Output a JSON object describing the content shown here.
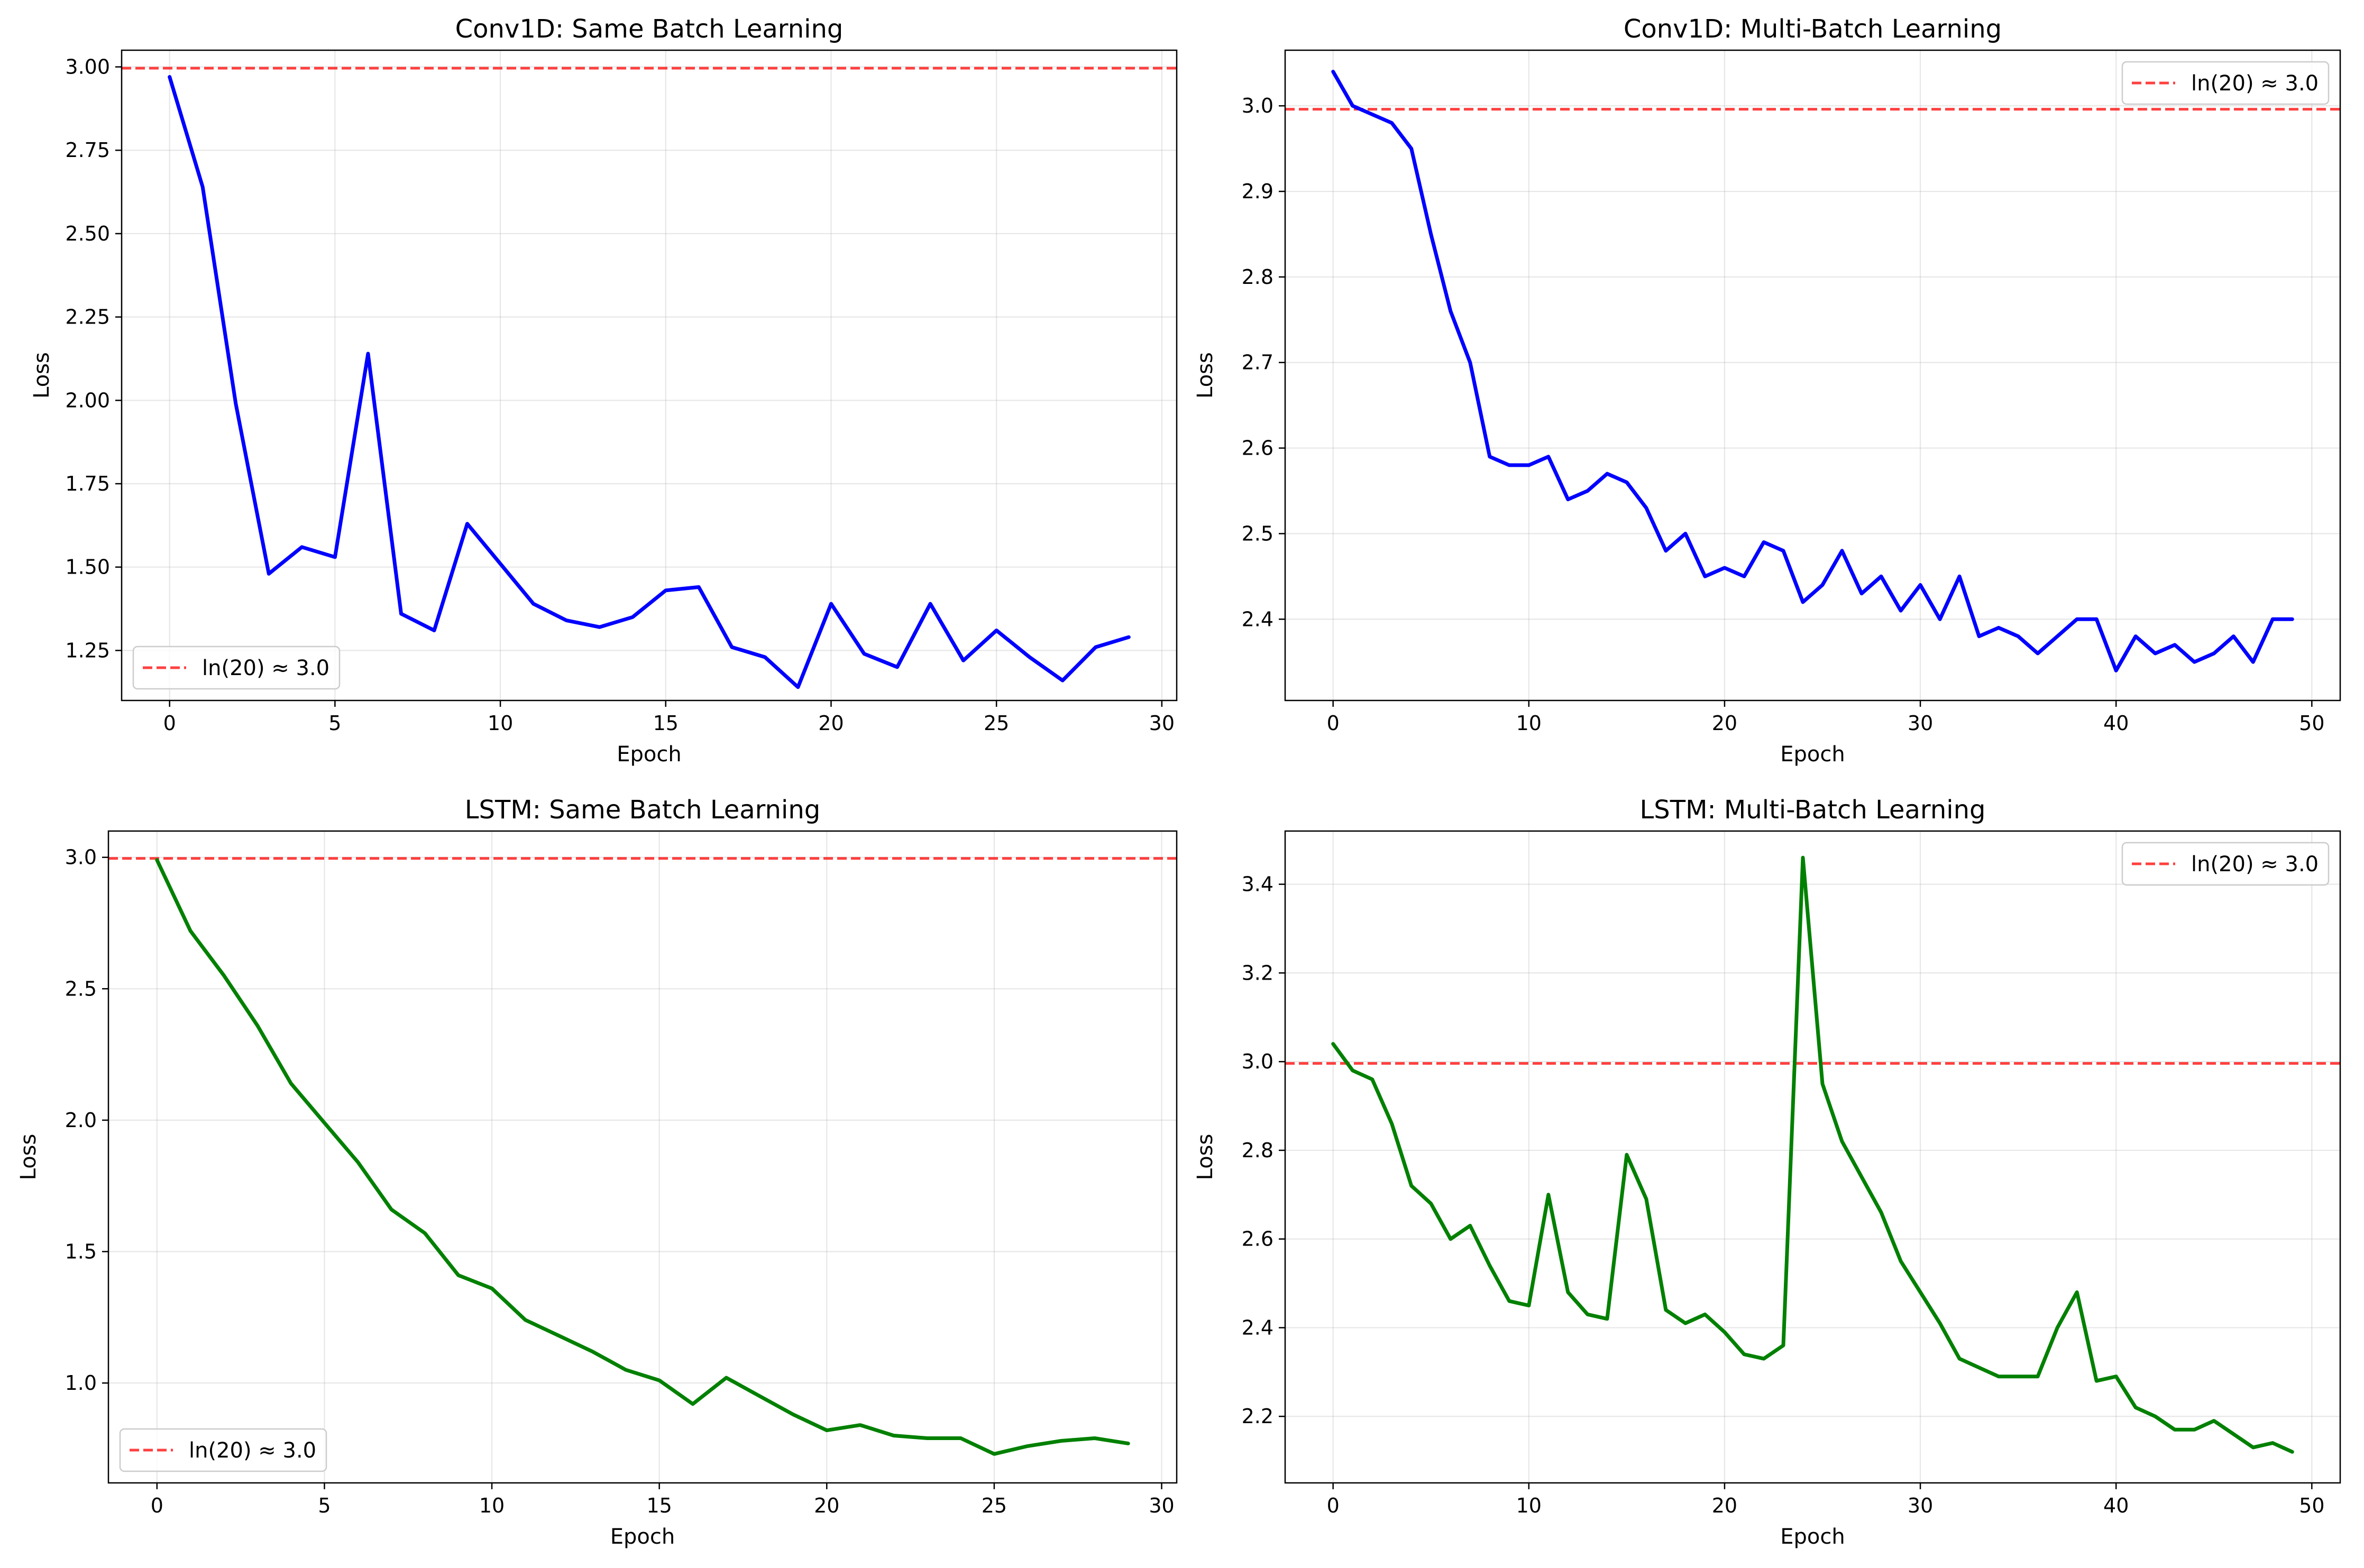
{
  "colors": {
    "threshold": "#ff0000",
    "conv1d": "#0000ff",
    "lstm": "#008000",
    "grid": "#b0b0b0"
  },
  "chart_data": [
    {
      "type": "line",
      "title": "Conv1D: Same Batch Learning",
      "xlabel": "Epoch",
      "ylabel": "Loss",
      "xlim": [
        -1.45,
        30.45
      ],
      "ylim": [
        1.1,
        3.05
      ],
      "xticks": [
        0,
        5,
        10,
        15,
        20,
        25,
        30
      ],
      "yticks": [
        1.25,
        1.5,
        1.75,
        2.0,
        2.25,
        2.5,
        2.75,
        3.0
      ],
      "ytick_labels": [
        "1.25",
        "1.50",
        "1.75",
        "2.00",
        "2.25",
        "2.50",
        "2.75",
        "3.00"
      ],
      "grid": true,
      "legend": {
        "placement": "lower-left",
        "entries": [
          "ln(20) ≈ 3.0"
        ]
      },
      "reference_line": {
        "y": 2.996,
        "label": "ln(20) ≈ 3.0",
        "color": "#ff0000",
        "style": "dashed"
      },
      "series": [
        {
          "color": "#0000ff",
          "x": [
            0,
            1,
            2,
            3,
            4,
            5,
            6,
            7,
            8,
            9,
            10,
            11,
            12,
            13,
            14,
            15,
            16,
            17,
            18,
            19,
            20,
            21,
            22,
            23,
            24,
            25,
            26,
            27,
            28,
            29
          ],
          "values": [
            2.97,
            2.64,
            1.99,
            1.48,
            1.56,
            1.53,
            2.14,
            1.36,
            1.31,
            1.63,
            1.51,
            1.39,
            1.34,
            1.32,
            1.35,
            1.43,
            1.44,
            1.26,
            1.23,
            1.14,
            1.39,
            1.24,
            1.2,
            1.39,
            1.22,
            1.31,
            1.23,
            1.16,
            1.26,
            1.29
          ]
        }
      ]
    },
    {
      "type": "line",
      "title": "Conv1D: Multi-Batch Learning",
      "xlabel": "Epoch",
      "ylabel": "Loss",
      "xlim": [
        -2.45,
        51.45
      ],
      "ylim": [
        2.305,
        3.065
      ],
      "xticks": [
        0,
        10,
        20,
        30,
        40,
        50
      ],
      "yticks": [
        2.4,
        2.5,
        2.6,
        2.7,
        2.8,
        2.9,
        3.0
      ],
      "ytick_labels": [
        "2.4",
        "2.5",
        "2.6",
        "2.7",
        "2.8",
        "2.9",
        "3.0"
      ],
      "grid": true,
      "legend": {
        "placement": "top-right",
        "entries": [
          "ln(20) ≈ 3.0"
        ]
      },
      "reference_line": {
        "y": 2.996,
        "label": "ln(20) ≈ 3.0",
        "color": "#ff0000",
        "style": "dashed"
      },
      "series": [
        {
          "color": "#0000ff",
          "x": [
            0,
            1,
            2,
            3,
            4,
            5,
            6,
            7,
            8,
            9,
            10,
            11,
            12,
            13,
            14,
            15,
            16,
            17,
            18,
            19,
            20,
            21,
            22,
            23,
            24,
            25,
            26,
            27,
            28,
            29,
            30,
            31,
            32,
            33,
            34,
            35,
            36,
            37,
            38,
            39,
            40,
            41,
            42,
            43,
            44,
            45,
            46,
            47,
            48,
            49
          ],
          "values": [
            3.04,
            3.0,
            2.99,
            2.98,
            2.95,
            2.85,
            2.76,
            2.7,
            2.59,
            2.58,
            2.58,
            2.59,
            2.54,
            2.55,
            2.57,
            2.56,
            2.53,
            2.48,
            2.5,
            2.45,
            2.46,
            2.45,
            2.49,
            2.48,
            2.42,
            2.44,
            2.48,
            2.43,
            2.45,
            2.41,
            2.44,
            2.4,
            2.45,
            2.38,
            2.39,
            2.38,
            2.36,
            2.38,
            2.4,
            2.4,
            2.34,
            2.38,
            2.36,
            2.37,
            2.35,
            2.36,
            2.38,
            2.35,
            2.4,
            2.4
          ]
        }
      ]
    },
    {
      "type": "line",
      "title": "LSTM: Same Batch Learning",
      "xlabel": "Epoch",
      "ylabel": "Loss",
      "xlim": [
        -1.45,
        30.45
      ],
      "ylim": [
        0.62,
        3.1
      ],
      "xticks": [
        0,
        5,
        10,
        15,
        20,
        25,
        30
      ],
      "yticks": [
        1.0,
        1.5,
        2.0,
        2.5,
        3.0
      ],
      "ytick_labels": [
        "1.0",
        "1.5",
        "2.0",
        "2.5",
        "3.0"
      ],
      "grid": true,
      "legend": {
        "placement": "lower-left",
        "entries": [
          "ln(20) ≈ 3.0"
        ]
      },
      "reference_line": {
        "y": 2.996,
        "label": "ln(20) ≈ 3.0",
        "color": "#ff0000",
        "style": "dashed"
      },
      "series": [
        {
          "color": "#008000",
          "x": [
            0,
            1,
            2,
            3,
            4,
            5,
            6,
            7,
            8,
            9,
            10,
            11,
            12,
            13,
            14,
            15,
            16,
            17,
            18,
            19,
            20,
            21,
            22,
            23,
            24,
            25,
            26,
            27,
            28,
            29
          ],
          "values": [
            2.99,
            2.72,
            2.55,
            2.36,
            2.14,
            1.99,
            1.84,
            1.66,
            1.57,
            1.41,
            1.36,
            1.24,
            1.18,
            1.12,
            1.05,
            1.01,
            0.92,
            1.02,
            0.95,
            0.88,
            0.82,
            0.84,
            0.8,
            0.79,
            0.79,
            0.73,
            0.76,
            0.78,
            0.79,
            0.77
          ]
        }
      ]
    },
    {
      "type": "line",
      "title": "LSTM: Multi-Batch Learning",
      "xlabel": "Epoch",
      "ylabel": "Loss",
      "xlim": [
        -2.45,
        51.45
      ],
      "ylim": [
        2.05,
        3.52
      ],
      "xticks": [
        0,
        10,
        20,
        30,
        40,
        50
      ],
      "yticks": [
        2.2,
        2.4,
        2.6,
        2.8,
        3.0,
        3.2,
        3.4
      ],
      "ytick_labels": [
        "2.2",
        "2.4",
        "2.6",
        "2.8",
        "3.0",
        "3.2",
        "3.4"
      ],
      "grid": true,
      "legend": {
        "placement": "top-right",
        "entries": [
          "ln(20) ≈ 3.0"
        ]
      },
      "reference_line": {
        "y": 2.996,
        "label": "ln(20) ≈ 3.0",
        "color": "#ff0000",
        "style": "dashed"
      },
      "series": [
        {
          "color": "#008000",
          "x": [
            0,
            1,
            2,
            3,
            4,
            5,
            6,
            7,
            8,
            9,
            10,
            11,
            12,
            13,
            14,
            15,
            16,
            17,
            18,
            19,
            20,
            21,
            22,
            23,
            24,
            25,
            26,
            27,
            28,
            29,
            30,
            31,
            32,
            33,
            34,
            35,
            36,
            37,
            38,
            39,
            40,
            41,
            42,
            43,
            44,
            45,
            46,
            47,
            48,
            49
          ],
          "values": [
            3.04,
            2.98,
            2.96,
            2.86,
            2.72,
            2.68,
            2.6,
            2.63,
            2.54,
            2.46,
            2.45,
            2.7,
            2.48,
            2.43,
            2.42,
            2.79,
            2.69,
            2.44,
            2.41,
            2.43,
            2.39,
            2.34,
            2.33,
            2.36,
            3.46,
            2.95,
            2.82,
            2.74,
            2.66,
            2.55,
            2.48,
            2.41,
            2.33,
            2.31,
            2.29,
            2.29,
            2.29,
            2.4,
            2.48,
            2.28,
            2.29,
            2.22,
            2.2,
            2.17,
            2.17,
            2.19,
            2.16,
            2.13,
            2.14,
            2.12
          ]
        }
      ]
    }
  ]
}
